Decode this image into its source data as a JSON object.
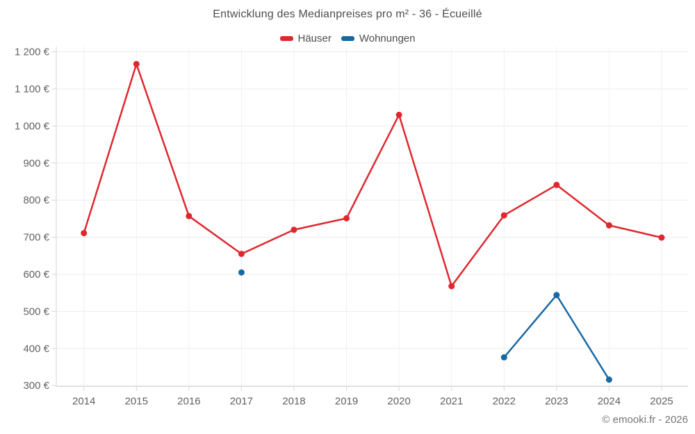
{
  "title": "Entwicklung des Medianpreises pro m² - 36 - Écueillé",
  "attribution": "© emooki.fr - 2026",
  "legend": {
    "hauser_label": "Häuser",
    "wohnungen_label": "Wohnungen"
  },
  "colors": {
    "hauser": "#e0272e",
    "wohnungen": "#1769a6",
    "grid": "#ececec",
    "axis": "#d6d6d6",
    "tick_label": "#616161",
    "title_text": "#4d4d4d"
  },
  "chart_data": {
    "type": "line",
    "title": "Entwicklung des Medianpreises pro m² - 36 - Écueillé",
    "x": [
      2014,
      2015,
      2016,
      2017,
      2018,
      2019,
      2020,
      2021,
      2022,
      2023,
      2024,
      2025
    ],
    "x_tick_labels": [
      "2014",
      "2015",
      "2016",
      "2017",
      "2018",
      "2019",
      "2020",
      "2021",
      "2022",
      "2023",
      "2024",
      "2025"
    ],
    "series": [
      {
        "name": "Häuser",
        "color": "#e0272e",
        "values": [
          711,
          1167,
          757,
          655,
          720,
          751,
          1030,
          568,
          759,
          841,
          732,
          699
        ]
      },
      {
        "name": "Wohnungen",
        "color": "#1769a6",
        "values": [
          null,
          null,
          null,
          605,
          null,
          null,
          null,
          null,
          376,
          544,
          316,
          null
        ]
      }
    ],
    "ylabel": "",
    "xlabel": "",
    "ylim": [
      300,
      1200
    ],
    "y_ticks": [
      300,
      400,
      500,
      600,
      700,
      800,
      900,
      1000,
      1100,
      1200
    ],
    "y_tick_labels": [
      "300 €",
      "400 €",
      "500 €",
      "600 €",
      "700 €",
      "800 €",
      "900 €",
      "1 000 €",
      "1 100 €",
      "1 200 €"
    ],
    "grid": true,
    "legend_position": "top-center",
    "attribution": "© emooki.fr - 2026"
  }
}
